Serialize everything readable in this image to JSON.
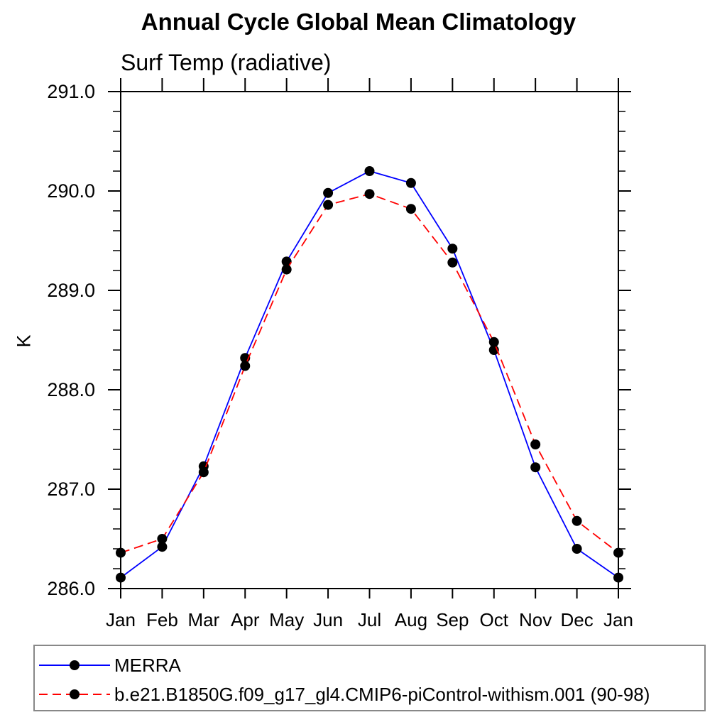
{
  "title": "Annual Cycle Global Mean Climatology",
  "subtitle": "Surf Temp (radiative)",
  "y_axis_label": "K",
  "colors": {
    "merra_line": "#0000ff",
    "model_line": "#ff0000",
    "marker": "#000000",
    "frame": "#000000",
    "legend_border": "#888888",
    "background": "#ffffff"
  },
  "legend": {
    "items": [
      {
        "label": "MERRA",
        "color": "#0000ff",
        "line_style": "solid",
        "marker": "filled-circle",
        "marker_color": "#000000"
      },
      {
        "label": "b.e21.B1850G.f09_g17_gl4.CMIP6-piControl-withism.001 (90-98)",
        "color": "#ff0000",
        "line_style": "dashed",
        "marker": "filled-circle",
        "marker_color": "#000000"
      }
    ]
  },
  "chart_data": {
    "type": "line",
    "title": "Annual Cycle Global Mean Climatology",
    "subtitle": "Surf Temp (radiative)",
    "xlabel": "",
    "ylabel": "K",
    "x_categories": [
      "Jan",
      "Feb",
      "Mar",
      "Apr",
      "May",
      "Jun",
      "Jul",
      "Aug",
      "Sep",
      "Oct",
      "Nov",
      "Dec",
      "Jan"
    ],
    "ylim": [
      286.0,
      291.0
    ],
    "y_major_tick_interval": 1.0,
    "y_minor_tick_interval": 0.2,
    "y_tick_labels": [
      "286.0",
      "287.0",
      "288.0",
      "289.0",
      "290.0",
      "291.0"
    ],
    "grid": false,
    "legend_position": "bottom-left-box",
    "series": [
      {
        "name": "MERRA",
        "color": "#0000ff",
        "line_style": "solid",
        "marker": "filled-circle",
        "marker_color": "#000000",
        "values": [
          286.11,
          286.42,
          287.23,
          288.32,
          289.29,
          289.98,
          290.2,
          290.08,
          289.42,
          288.4,
          287.22,
          286.4,
          286.11
        ]
      },
      {
        "name": "b.e21.B1850G.f09_g17_gl4.CMIP6-piControl-withism.001 (90-98)",
        "color": "#ff0000",
        "line_style": "dashed",
        "marker": "filled-circle",
        "marker_color": "#000000",
        "values": [
          286.36,
          286.5,
          287.17,
          288.24,
          289.21,
          289.86,
          289.97,
          289.82,
          289.28,
          288.48,
          287.45,
          286.68,
          286.36
        ]
      }
    ]
  }
}
